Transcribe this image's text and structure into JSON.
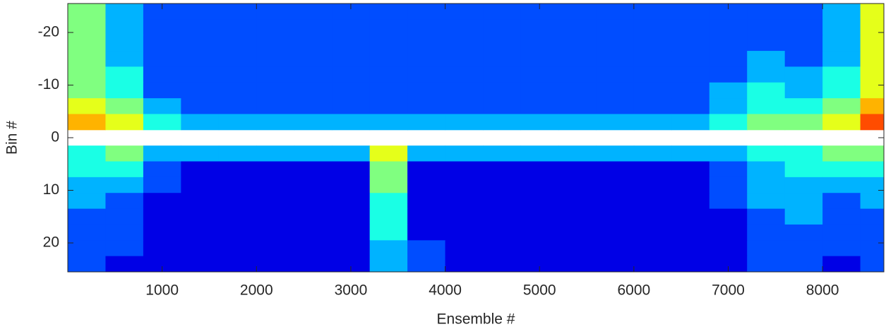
{
  "chart_data": {
    "type": "heatmap",
    "xlabel": "Ensemble #",
    "ylabel": "Bin #",
    "x": [
      200,
      600,
      1000,
      1400,
      1800,
      2200,
      2600,
      3000,
      3400,
      3800,
      4200,
      4600,
      5000,
      5400,
      5800,
      6200,
      6600,
      7000,
      7400,
      7800,
      8200,
      8600
    ],
    "y": [
      -24,
      -21,
      -18,
      -15,
      -12,
      -9,
      -6,
      -3,
      0,
      3,
      6,
      9,
      12,
      15,
      18,
      21,
      24
    ],
    "z": [
      [
        5,
        3,
        2,
        2,
        2,
        2,
        2,
        2,
        2,
        2,
        2,
        2,
        2,
        2,
        2,
        2,
        2,
        2,
        2,
        2,
        3,
        6
      ],
      [
        5,
        3,
        2,
        2,
        2,
        2,
        2,
        2,
        2,
        2,
        2,
        2,
        2,
        2,
        2,
        2,
        2,
        2,
        2,
        2,
        3,
        6
      ],
      [
        5,
        3,
        2,
        2,
        2,
        2,
        2,
        2,
        2,
        2,
        2,
        2,
        2,
        2,
        2,
        2,
        2,
        2,
        2,
        2,
        3,
        6
      ],
      [
        5,
        3,
        2,
        2,
        2,
        2,
        2,
        2,
        2,
        2,
        2,
        2,
        2,
        2,
        2,
        2,
        2,
        2,
        3,
        2,
        3,
        6
      ],
      [
        5,
        4,
        2,
        2,
        2,
        2,
        2,
        2,
        2,
        2,
        2,
        2,
        2,
        2,
        2,
        2,
        2,
        2,
        3,
        3,
        4,
        6
      ],
      [
        5,
        4,
        2,
        2,
        2,
        2,
        2,
        2,
        2,
        2,
        2,
        2,
        2,
        2,
        2,
        2,
        2,
        3,
        4,
        3,
        4,
        6
      ],
      [
        6,
        5,
        3,
        2,
        2,
        2,
        2,
        2,
        2,
        2,
        2,
        2,
        2,
        2,
        2,
        2,
        2,
        3,
        4,
        4,
        5,
        7
      ],
      [
        7,
        6,
        4,
        3,
        3,
        3,
        3,
        3,
        3,
        3,
        3,
        3,
        3,
        3,
        3,
        3,
        3,
        4,
        5,
        5,
        6,
        8
      ],
      [
        null,
        null,
        null,
        null,
        null,
        null,
        null,
        null,
        null,
        null,
        null,
        null,
        null,
        null,
        null,
        null,
        null,
        null,
        null,
        null,
        null,
        null
      ],
      [
        4,
        5,
        3,
        3,
        3,
        3,
        3,
        3,
        6,
        3,
        3,
        3,
        3,
        3,
        3,
        3,
        3,
        3,
        4,
        4,
        5,
        5
      ],
      [
        4,
        4,
        2,
        1,
        1,
        1,
        1,
        1,
        5,
        1,
        1,
        1,
        1,
        1,
        1,
        1,
        1,
        2,
        3,
        4,
        4,
        4
      ],
      [
        3,
        3,
        2,
        1,
        1,
        1,
        1,
        1,
        5,
        1,
        1,
        1,
        1,
        1,
        1,
        1,
        1,
        2,
        3,
        3,
        3,
        3
      ],
      [
        3,
        2,
        1,
        1,
        1,
        1,
        1,
        1,
        4,
        1,
        1,
        1,
        1,
        1,
        1,
        1,
        1,
        2,
        3,
        3,
        2,
        3
      ],
      [
        2,
        2,
        1,
        1,
        1,
        1,
        1,
        1,
        4,
        1,
        1,
        1,
        1,
        1,
        1,
        1,
        1,
        1,
        2,
        3,
        2,
        2
      ],
      [
        2,
        2,
        1,
        1,
        1,
        1,
        1,
        1,
        4,
        1,
        1,
        1,
        1,
        1,
        1,
        1,
        1,
        1,
        2,
        2,
        2,
        2
      ],
      [
        2,
        2,
        1,
        1,
        1,
        1,
        1,
        1,
        3,
        2,
        1,
        1,
        1,
        1,
        1,
        1,
        1,
        1,
        2,
        2,
        2,
        2
      ],
      [
        2,
        1,
        1,
        1,
        1,
        1,
        1,
        1,
        3,
        2,
        1,
        1,
        1,
        1,
        1,
        1,
        1,
        1,
        2,
        2,
        1,
        2
      ]
    ],
    "colormap": "jet",
    "clim": [
      0,
      10
    ],
    "xlim": [
      0,
      8650
    ],
    "xticks": [
      1000,
      2000,
      3000,
      4000,
      5000,
      6000,
      7000,
      8000
    ],
    "ylim": [
      -25.5,
      25.5
    ],
    "yticks": [
      -20,
      -10,
      0,
      10,
      20
    ],
    "y_reversed": true
  }
}
